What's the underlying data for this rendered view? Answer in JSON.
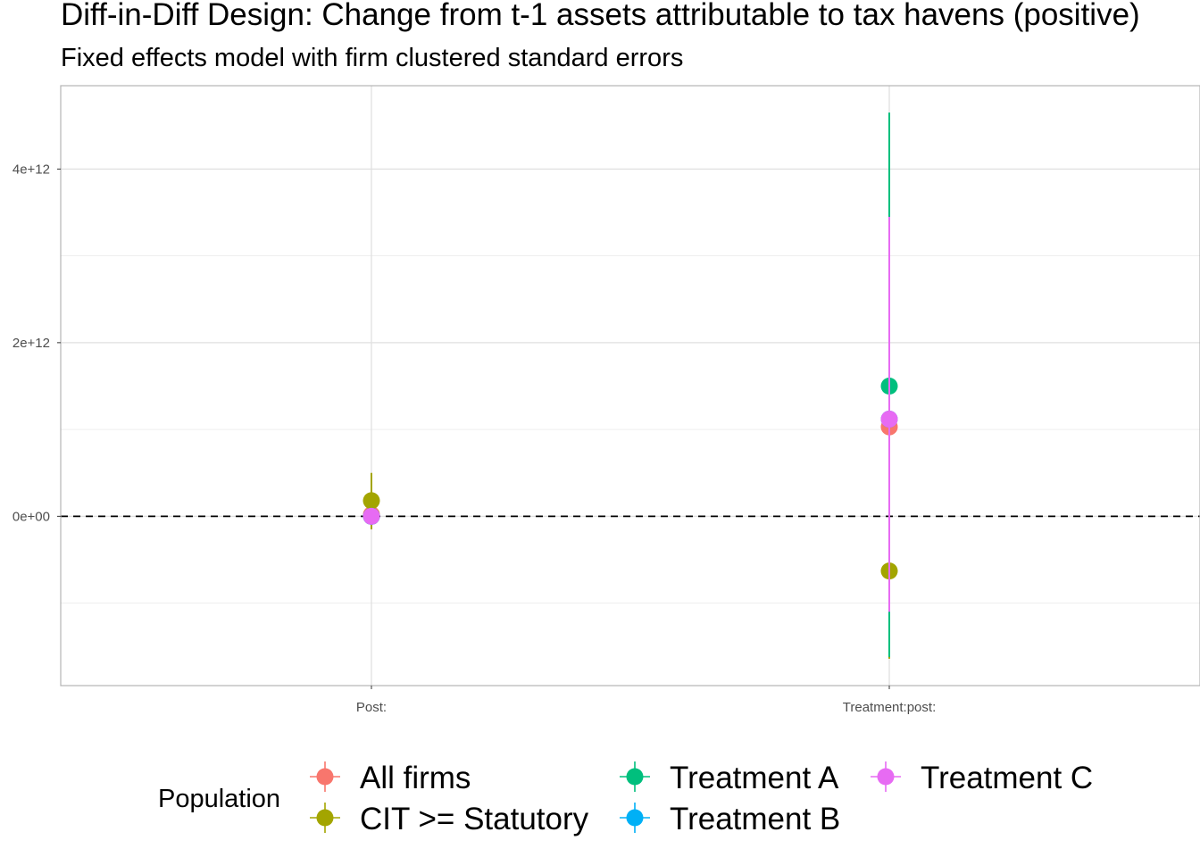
{
  "chart_data": {
    "type": "scatter",
    "title": "Diff-in-Diff Design: Change from t-1 assets attributable to tax havens (positive)",
    "subtitle": "Fixed effects model with firm clustered standard errors",
    "xlabel": "",
    "ylabel": "",
    "categories": [
      "Post:",
      "Treatment:post:"
    ],
    "y_ticks": [
      0,
      2000000000000,
      4000000000000
    ],
    "y_tick_labels": [
      "0e+00",
      "2e+12",
      "4e+12"
    ],
    "ylim": [
      -1950000000000,
      4960000000000
    ],
    "reference_line": {
      "y": 0,
      "style": "dashed"
    },
    "grid": true,
    "legend": {
      "title": "Population",
      "position": "bottom"
    },
    "series": [
      {
        "name": "All firms",
        "color": "#F8766D",
        "points": [
          {
            "category": "Post:",
            "estimate": 20000000000,
            "low": -60000000000,
            "high": 100000000000
          },
          {
            "category": "Treatment:post:",
            "estimate": 1030000000000,
            "low": 900000000000,
            "high": 1160000000000
          }
        ]
      },
      {
        "name": "CIT >= Statutory",
        "color": "#A3A500",
        "points": [
          {
            "category": "Post:",
            "estimate": 180000000000,
            "low": -150000000000,
            "high": 500000000000
          },
          {
            "category": "Treatment:post:",
            "estimate": -630000000000,
            "low": -1640000000000,
            "high": 330000000000
          }
        ]
      },
      {
        "name": "Treatment A",
        "color": "#00BF7D",
        "points": [
          {
            "category": "Post:",
            "estimate": 0,
            "low": -40000000000,
            "high": 40000000000
          },
          {
            "category": "Treatment:post:",
            "estimate": 1500000000000,
            "low": -1620000000000,
            "high": 4650000000000
          }
        ]
      },
      {
        "name": "Treatment B",
        "color": "#00B0F6",
        "points": [
          {
            "category": "Post:",
            "estimate": 0,
            "low": -30000000000,
            "high": 30000000000
          },
          {
            "category": "Treatment:post:",
            "estimate": 1120000000000,
            "low": 1080000000000,
            "high": 1160000000000
          }
        ]
      },
      {
        "name": "Treatment C",
        "color": "#E76BF3",
        "points": [
          {
            "category": "Post:",
            "estimate": 0,
            "low": -50000000000,
            "high": 50000000000
          },
          {
            "category": "Treatment:post:",
            "estimate": 1120000000000,
            "low": -1100000000000,
            "high": 3450000000000
          }
        ]
      }
    ]
  }
}
